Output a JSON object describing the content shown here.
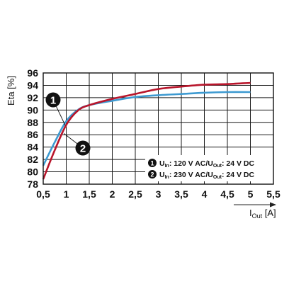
{
  "chart_data": {
    "type": "line",
    "ylabel": "Eta [%]",
    "xlabel_main": "I",
    "xlabel_sub": "Out",
    "xlabel_unit": " [A]",
    "x_ticks": [
      "0,5",
      "1",
      "1,5",
      "2",
      "2,5",
      "3",
      "3,5",
      "4",
      "4,5",
      "5",
      "5,5"
    ],
    "y_ticks": [
      "78",
      "80",
      "82",
      "84",
      "86",
      "88",
      "90",
      "92",
      "94",
      "96"
    ],
    "xlim": [
      0.5,
      5.5
    ],
    "ylim": [
      78,
      96
    ],
    "grid": true,
    "series": [
      {
        "marker": "1",
        "color": "#b8152b",
        "x": [
          0.5,
          0.75,
          1.0,
          1.25,
          1.5,
          2.0,
          2.5,
          3.0,
          3.5,
          4.0,
          4.5,
          5.0
        ],
        "y": [
          78.8,
          83.5,
          87.6,
          89.9,
          90.8,
          91.8,
          92.6,
          93.4,
          93.8,
          94.1,
          94.2,
          94.4
        ]
      },
      {
        "marker": "2",
        "color": "#3d9ad1",
        "x": [
          0.5,
          0.75,
          1.0,
          1.25,
          1.5,
          2.0,
          2.5,
          3.0,
          3.5,
          4.0,
          4.5,
          5.0
        ],
        "y": [
          81.0,
          84.8,
          88.2,
          90.0,
          90.8,
          91.5,
          92.1,
          92.4,
          92.6,
          92.8,
          92.9,
          92.9
        ]
      }
    ],
    "legend": [
      {
        "marker": "1",
        "u": "U",
        "u_sub": "In",
        "mid": ": 120 V AC/U",
        "out_sub": "Out",
        "end": ": 24 V DC"
      },
      {
        "marker": "2",
        "u": "U",
        "u_sub": "In",
        "mid": ": 230 V AC/U",
        "out_sub": "Out",
        "end": ": 24 V DC"
      }
    ]
  }
}
